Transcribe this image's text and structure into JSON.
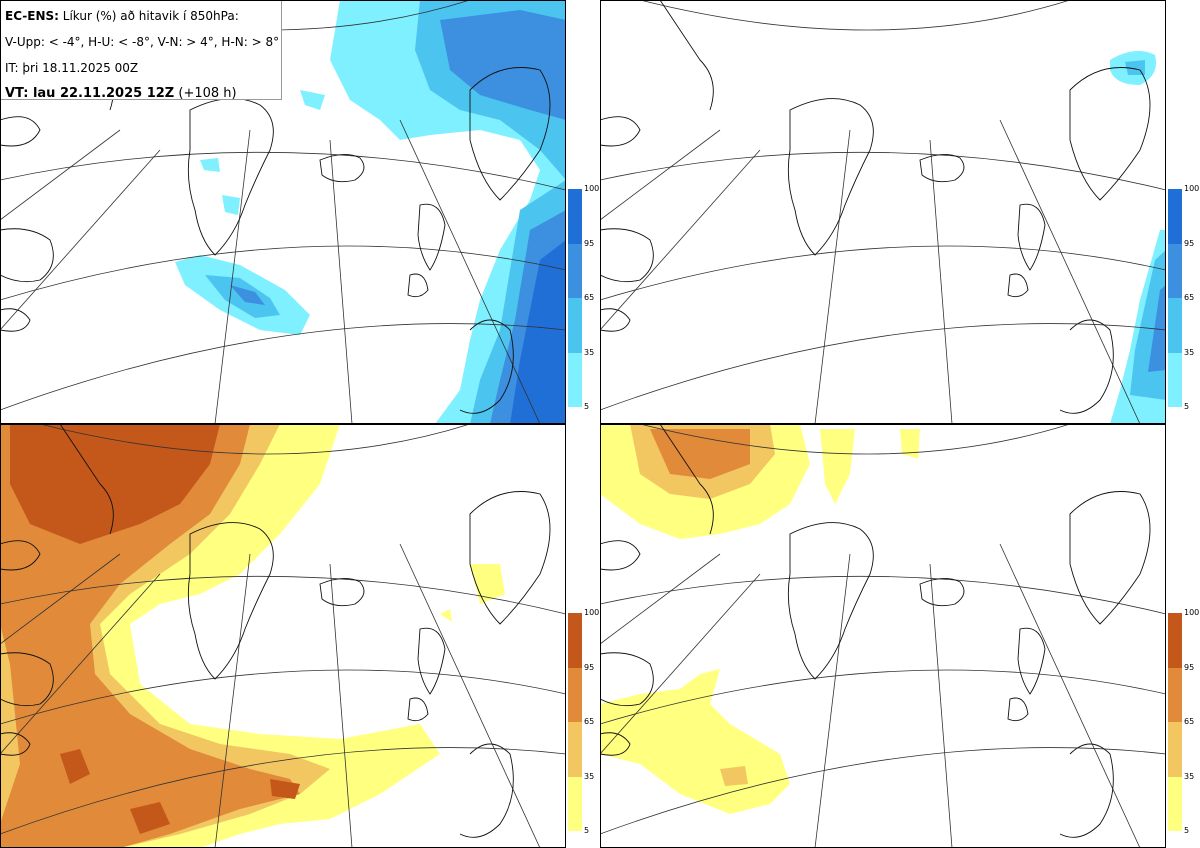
{
  "header": {
    "model": "EC-ENS:",
    "title_rest": " Líkur (%) að hitavik í 850hPa:",
    "legend_line": "V-Upp: < -4°, H-U: < -8°, V-N: > 4°, H-N: > 8°",
    "init_time": "IT: þri 18.11.2025 00Z",
    "valid_label": "VT: lau 22.11.2025 12Z",
    "valid_offset": " (+108 h)"
  },
  "panels": [
    {
      "id": "V-Upp",
      "meaning": "probability anomaly < -4°",
      "scale": "cold"
    },
    {
      "id": "H-U",
      "meaning": "probability anomaly < -8°",
      "scale": "cold"
    },
    {
      "id": "V-N",
      "meaning": "probability anomaly > 4°",
      "scale": "warm"
    },
    {
      "id": "H-N",
      "meaning": "probability anomaly > 8°",
      "scale": "warm"
    }
  ],
  "colorbar": {
    "ticks": [
      "100",
      "95",
      "65",
      "35",
      "5"
    ],
    "cold_colors": [
      "#1f6fd6",
      "#3d8fe0",
      "#4cc4f0",
      "#7ef0ff"
    ],
    "warm_colors": [
      "#c4571a",
      "#e08a3a",
      "#f2c660",
      "#ffff80"
    ]
  },
  "colors": {
    "cold_light": "#7ef0ff",
    "cold_mid": "#4cc4f0",
    "cold_dark": "#3d8fe0",
    "cold_deep": "#1f6fd6",
    "warm_light": "#ffff80",
    "warm_mid": "#f2c660",
    "warm_dark": "#e08a3a",
    "warm_deep": "#c4571a"
  }
}
